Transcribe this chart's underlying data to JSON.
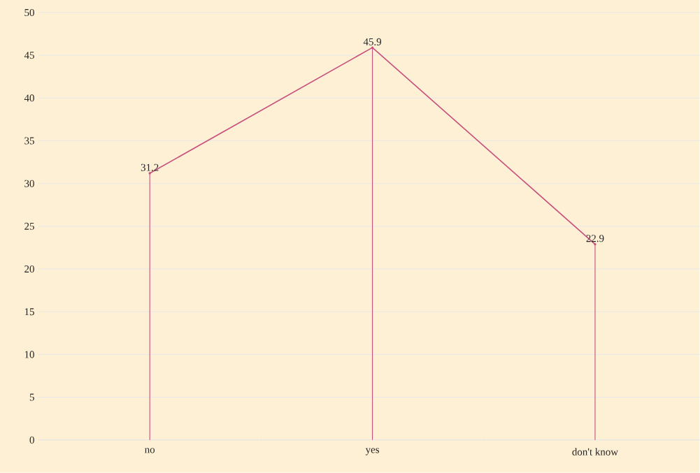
{
  "chart_data": {
    "type": "line",
    "categories": [
      "no",
      "yes",
      "don't know"
    ],
    "series": [
      {
        "color": "#c8507c",
        "values": [
          31.2,
          45.9,
          22.9
        ],
        "value_labels": [
          "31.2",
          "45.9",
          "22.9"
        ]
      },
      {
        "type": "lollipop",
        "color": "#c8507c",
        "values": [
          31.2,
          45.9,
          22.9
        ]
      }
    ],
    "ylim": [
      0,
      50
    ],
    "yticks": [
      0,
      5,
      10,
      15,
      20,
      25,
      30,
      35,
      40,
      45,
      50
    ],
    "grid": "y",
    "marker": "none",
    "line_style": "solid"
  }
}
